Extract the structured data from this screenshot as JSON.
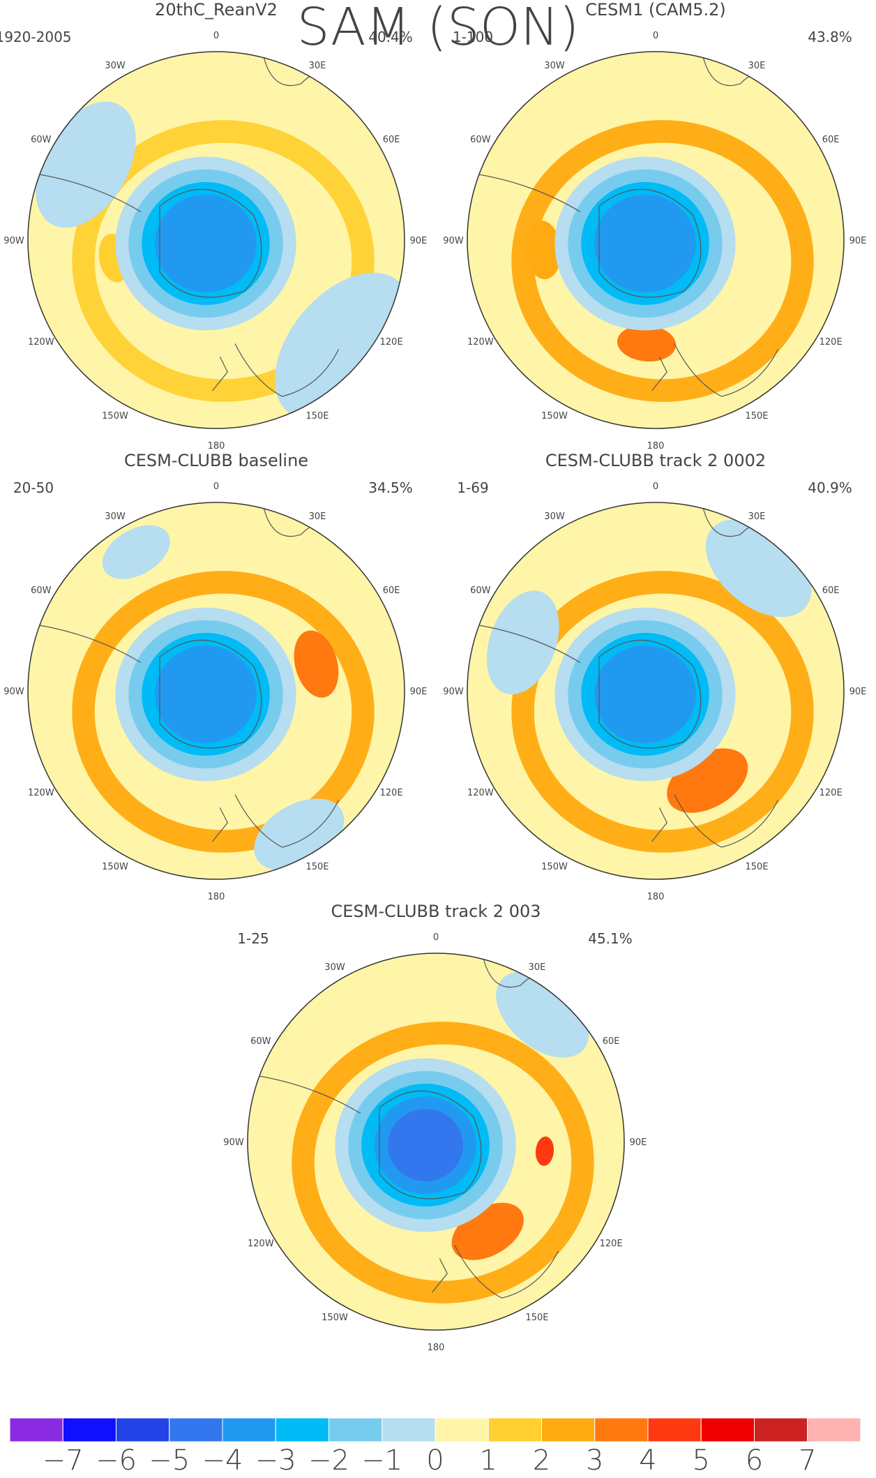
{
  "figure": {
    "title": "SAM (SON)"
  },
  "chart_data": {
    "type": "heatmap",
    "projection": "south polar stereographic",
    "longitude_labels": [
      "0",
      "30E",
      "60E",
      "90E",
      "120E",
      "150E",
      "180",
      "150W",
      "120W",
      "90W",
      "60W",
      "30W"
    ],
    "panels": [
      {
        "name": "20thC_ReanV2",
        "period": "1920-2005",
        "variance": "40.4%",
        "core_level": -4,
        "ring_level": 1,
        "features": [
          {
            "level": -1,
            "lon": 130,
            "r": 0.88,
            "size": 0.35
          },
          {
            "level": -1,
            "lon": 300,
            "r": 0.8,
            "size": 0.28
          },
          {
            "level": 1,
            "lon": 260,
            "r": 0.55,
            "size": 0.1
          }
        ]
      },
      {
        "name": "CESM1 (CAM5.2)",
        "period": "1-100",
        "variance": "43.8%",
        "core_level": -4,
        "ring_level": 2,
        "features": [
          {
            "level": 3,
            "lon": 185,
            "r": 0.55,
            "size": 0.12
          },
          {
            "level": 2,
            "lon": 265,
            "r": 0.6,
            "size": 0.12
          }
        ]
      },
      {
        "name": "CESM-CLUBB baseline",
        "period": "20-50",
        "variance": "34.5%",
        "core_level": -4,
        "ring_level": 2,
        "features": [
          {
            "level": 3,
            "lon": 75,
            "r": 0.55,
            "size": 0.14
          },
          {
            "level": -1,
            "lon": 150,
            "r": 0.88,
            "size": 0.2
          },
          {
            "level": -1,
            "lon": 330,
            "r": 0.85,
            "size": 0.15
          }
        ]
      },
      {
        "name": "CESM-CLUBB track 2 0002",
        "period": "1-69",
        "variance": "40.9%",
        "core_level": -4,
        "ring_level": 2,
        "features": [
          {
            "level": 3,
            "lon": 150,
            "r": 0.55,
            "size": 0.18
          },
          {
            "level": -1,
            "lon": 40,
            "r": 0.85,
            "size": 0.25
          },
          {
            "level": -1,
            "lon": 290,
            "r": 0.75,
            "size": 0.22
          }
        ]
      },
      {
        "name": "CESM-CLUBB track 2 003",
        "period": "1-25",
        "variance": "45.1%",
        "core_level": -5,
        "ring_level": 2,
        "features": [
          {
            "level": 3,
            "lon": 150,
            "r": 0.55,
            "size": 0.16
          },
          {
            "level": 4,
            "lon": 95,
            "r": 0.58,
            "size": 0.06
          },
          {
            "level": -1,
            "lon": 40,
            "r": 0.88,
            "size": 0.22
          }
        ]
      }
    ],
    "colorbar": {
      "levels": [
        -7,
        -6,
        -5,
        -4,
        -3,
        -2,
        -1,
        0,
        1,
        2,
        3,
        4,
        5,
        6,
        7
      ],
      "tick_labels": [
        "−7",
        "−6",
        "−5",
        "−4",
        "−3",
        "−2",
        "−1",
        "0",
        "1",
        "2",
        "3",
        "4",
        "5",
        "6",
        "7"
      ],
      "colors": [
        "#8a2be2",
        "#1010ff",
        "#2244e6",
        "#3377ee",
        "#2299f0",
        "#00bbf5",
        "#77ccee",
        "#b6ddf0",
        "#fff5a8",
        "#ffd030",
        "#ffaa10",
        "#ff7810",
        "#ff3a10",
        "#ee0000",
        "#cc2222",
        "#ffb2b2"
      ]
    }
  }
}
